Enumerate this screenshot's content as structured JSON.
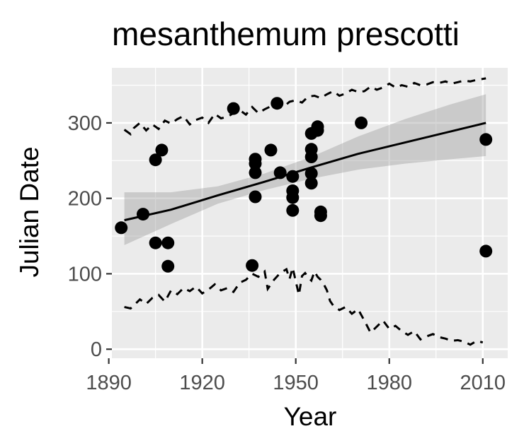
{
  "chart_data": {
    "type": "scatter",
    "title": "mesanthemum prescotti",
    "xlabel": "Year",
    "ylabel": "Julian Date",
    "xlim": [
      1891,
      2018
    ],
    "ylim": [
      -12,
      373
    ],
    "x_ticks": [
      1890,
      1920,
      1950,
      1980,
      2010
    ],
    "y_ticks": [
      0,
      100,
      200,
      300
    ],
    "x_tick_labels": [
      "1890",
      "1920",
      "1950",
      "1980",
      "2010"
    ],
    "y_tick_labels": [
      "0",
      "100",
      "200",
      "300"
    ],
    "grid": true,
    "legend": "none",
    "points": [
      {
        "x": 1894,
        "y": 161
      },
      {
        "x": 1901,
        "y": 179
      },
      {
        "x": 1905,
        "y": 251
      },
      {
        "x": 1905,
        "y": 141
      },
      {
        "x": 1907,
        "y": 264
      },
      {
        "x": 1909,
        "y": 141
      },
      {
        "x": 1909,
        "y": 110
      },
      {
        "x": 1930,
        "y": 319
      },
      {
        "x": 1936,
        "y": 111
      },
      {
        "x": 1937,
        "y": 252
      },
      {
        "x": 1937,
        "y": 246
      },
      {
        "x": 1937,
        "y": 234
      },
      {
        "x": 1937,
        "y": 202
      },
      {
        "x": 1942,
        "y": 264
      },
      {
        "x": 1944,
        "y": 326
      },
      {
        "x": 1945,
        "y": 234
      },
      {
        "x": 1949,
        "y": 229
      },
      {
        "x": 1949,
        "y": 210
      },
      {
        "x": 1949,
        "y": 201
      },
      {
        "x": 1949,
        "y": 184
      },
      {
        "x": 1955,
        "y": 286
      },
      {
        "x": 1955,
        "y": 265
      },
      {
        "x": 1955,
        "y": 255
      },
      {
        "x": 1955,
        "y": 233
      },
      {
        "x": 1955,
        "y": 220
      },
      {
        "x": 1957,
        "y": 295
      },
      {
        "x": 1957,
        "y": 290
      },
      {
        "x": 1958,
        "y": 182
      },
      {
        "x": 1958,
        "y": 177
      },
      {
        "x": 1971,
        "y": 300
      },
      {
        "x": 2011,
        "y": 278
      },
      {
        "x": 2011,
        "y": 130
      }
    ],
    "trend": {
      "x": [
        1895,
        1910,
        1925,
        1940,
        1955,
        1970,
        1985,
        2000,
        2011
      ],
      "y": [
        171,
        185,
        204,
        222,
        241,
        259,
        274,
        289,
        300
      ]
    },
    "ribbon": {
      "x": [
        1895,
        1910,
        1925,
        1940,
        1955,
        1970,
        1985,
        2000,
        2011
      ],
      "lower": [
        138,
        166,
        193,
        211,
        226,
        238,
        246,
        252,
        256
      ],
      "upper": [
        208,
        208,
        216,
        233,
        255,
        282,
        305,
        325,
        338
      ]
    },
    "upper_dashed": {
      "x": [
        1895,
        1897,
        1898,
        1900,
        1902,
        1904,
        1906,
        1908,
        1910,
        1912,
        1914,
        1916,
        1918,
        1920,
        1922,
        1924,
        1926,
        1928,
        1930,
        1932,
        1934,
        1936,
        1938,
        1940,
        1942,
        1944,
        1946,
        1948,
        1950,
        1952,
        1954,
        1956,
        1958,
        1960,
        1962,
        1964,
        1966,
        1968,
        1970,
        1972,
        1974,
        1976,
        1978,
        1980,
        1982,
        1984,
        1986,
        1988,
        1990,
        1992,
        1994,
        1996,
        1998,
        2000,
        2002,
        2004,
        2006,
        2008,
        2011
      ],
      "y": [
        291,
        285,
        293,
        300,
        290,
        298,
        292,
        303,
        299,
        305,
        309,
        298,
        304,
        307,
        300,
        312,
        306,
        308,
        313,
        317,
        311,
        321,
        313,
        318,
        322,
        326,
        321,
        328,
        330,
        327,
        335,
        336,
        333,
        338,
        342,
        336,
        339,
        344,
        341,
        342,
        348,
        344,
        347,
        352,
        347,
        350,
        348,
        353,
        350,
        351,
        354,
        353,
        355,
        352,
        354,
        356,
        355,
        357,
        359
      ]
    },
    "lower_dashed": {
      "x": [
        1895,
        1897,
        1898,
        1900,
        1902,
        1904,
        1906,
        1908,
        1910,
        1912,
        1914,
        1916,
        1918,
        1920,
        1922,
        1924,
        1926,
        1928,
        1930,
        1932,
        1934,
        1936,
        1938,
        1940,
        1941,
        1943,
        1945,
        1947,
        1948,
        1949,
        1951,
        1952,
        1953,
        1954,
        1955,
        1956,
        1957,
        1958,
        1959,
        1960,
        1961,
        1962,
        1964,
        1966,
        1968,
        1970,
        1972,
        1974,
        1976,
        1978,
        1980,
        1982,
        1984,
        1986,
        1988,
        1990,
        1992,
        1994,
        1996,
        1998,
        2000,
        2002,
        2004,
        2006,
        2008,
        2010
      ],
      "y": [
        56,
        54,
        58,
        66,
        60,
        68,
        72,
        63,
        78,
        73,
        81,
        77,
        83,
        74,
        79,
        86,
        78,
        81,
        76,
        88,
        92,
        100,
        96,
        103,
        80,
        92,
        101,
        106,
        93,
        108,
        72,
        97,
        101,
        95,
        91,
        103,
        96,
        92,
        86,
        78,
        64,
        58,
        52,
        56,
        47,
        53,
        38,
        22,
        30,
        38,
        27,
        31,
        24,
        19,
        24,
        13,
        17,
        20,
        16,
        14,
        11,
        12,
        10,
        6,
        11,
        9
      ]
    }
  }
}
